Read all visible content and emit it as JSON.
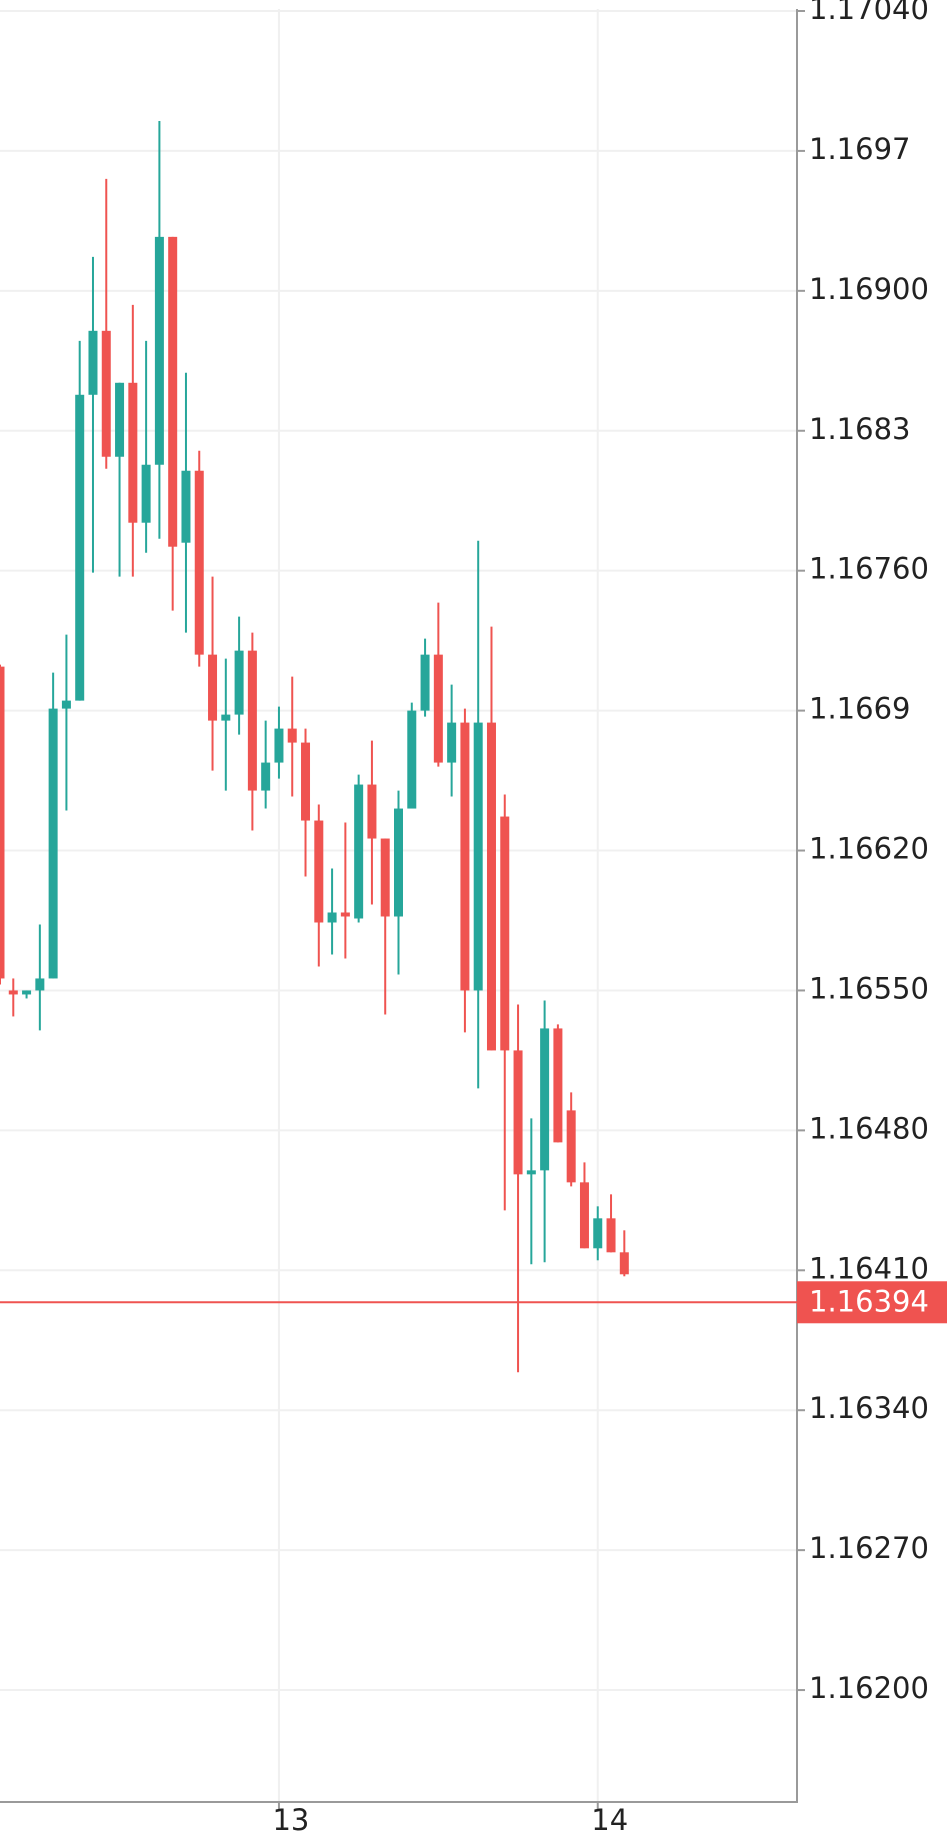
{
  "chart_data": {
    "type": "candlestick",
    "open": [
      1.16712,
      1.1655,
      1.16548,
      1.1655,
      1.16556,
      1.16691,
      1.16695,
      1.16848,
      1.1688,
      1.16817,
      1.16854,
      1.16784,
      1.16813,
      1.16927,
      1.16774,
      1.1681,
      1.16718,
      1.16685,
      1.16688,
      1.1672,
      1.1665,
      1.16664,
      1.16681,
      1.16674,
      1.16635,
      1.16584,
      1.16589,
      1.16586,
      1.16653,
      1.16626,
      1.16587,
      1.16641,
      1.1669,
      1.16718,
      1.16664,
      1.16684,
      1.1655,
      1.16684,
      1.16637,
      1.1652,
      1.16458,
      1.1646,
      1.16531,
      1.1649,
      1.16454,
      1.16421,
      1.16436,
      1.16419
    ],
    "high": [
      1.16713,
      1.16556,
      1.1655,
      1.16583,
      1.16709,
      1.16728,
      1.16875,
      1.16917,
      1.16956,
      1.16854,
      1.16893,
      1.16875,
      1.16985,
      1.16927,
      1.16859,
      1.1682,
      1.16757,
      1.16716,
      1.16737,
      1.16729,
      1.16685,
      1.16692,
      1.16707,
      1.16681,
      1.16643,
      1.16611,
      1.16634,
      1.16658,
      1.16675,
      1.16626,
      1.1665,
      1.16694,
      1.16726,
      1.16744,
      1.16703,
      1.16691,
      1.16775,
      1.16732,
      1.16648,
      1.16543,
      1.16486,
      1.16545,
      1.16533,
      1.16499,
      1.16464,
      1.16442,
      1.16448,
      1.1643
    ],
    "low": [
      1.16553,
      1.16537,
      1.16546,
      1.1653,
      1.16556,
      1.1664,
      1.16695,
      1.16759,
      1.16811,
      1.16757,
      1.16757,
      1.16769,
      1.16776,
      1.1674,
      1.16729,
      1.16712,
      1.1666,
      1.1665,
      1.16678,
      1.1663,
      1.16641,
      1.16656,
      1.16647,
      1.16607,
      1.16562,
      1.16568,
      1.16566,
      1.16584,
      1.16593,
      1.16538,
      1.16558,
      1.16641,
      1.16687,
      1.16662,
      1.16647,
      1.16529,
      1.16501,
      1.1652,
      1.1644,
      1.16359,
      1.16413,
      1.16414,
      1.16474,
      1.16452,
      1.16421,
      1.16415,
      1.16419,
      1.16407
    ],
    "close": [
      1.16556,
      1.16548,
      1.1655,
      1.16556,
      1.16691,
      1.16695,
      1.16848,
      1.1688,
      1.16817,
      1.16854,
      1.16784,
      1.16813,
      1.16927,
      1.16772,
      1.1681,
      1.16718,
      1.16685,
      1.16688,
      1.1672,
      1.1665,
      1.16664,
      1.16681,
      1.16674,
      1.16635,
      1.16584,
      1.16589,
      1.16587,
      1.16653,
      1.16626,
      1.16587,
      1.16641,
      1.1669,
      1.16718,
      1.16664,
      1.16684,
      1.1655,
      1.16684,
      1.1652,
      1.1652,
      1.16458,
      1.1646,
      1.16531,
      1.16474,
      1.16454,
      1.16421,
      1.16436,
      1.16419,
      1.16408
    ],
    "up_color": "#26a69a",
    "down_color": "#ef5350",
    "last_price": 1.16394,
    "last_price_label": "1.16394",
    "last_price_color": "#ef5350",
    "ylim": [
      1.16144,
      1.17041
    ],
    "yticks": [
      {
        "value": 1.1704,
        "label": "1.17040"
      },
      1.1697,
      {
        "value": 1.169,
        "label": "1.16900"
      },
      1.1683,
      {
        "value": 1.1676,
        "label": "1.16760"
      },
      1.1669,
      {
        "value": 1.1662,
        "label": "1.16620"
      },
      {
        "value": 1.1655,
        "label": "1.16550"
      },
      {
        "value": 1.1648,
        "label": "1.16480"
      },
      {
        "value": 1.1641,
        "label": "1.16410"
      },
      {
        "value": 1.1634,
        "label": "1.16340"
      },
      {
        "value": 1.1627,
        "label": "1.16270"
      },
      {
        "value": 1.162,
        "label": "1.16200"
      }
    ],
    "xlim": [
      0,
      60
    ],
    "xticks": [
      {
        "value": 21,
        "label": "13"
      },
      {
        "value": 45,
        "label": "14"
      }
    ],
    "grid": true
  }
}
